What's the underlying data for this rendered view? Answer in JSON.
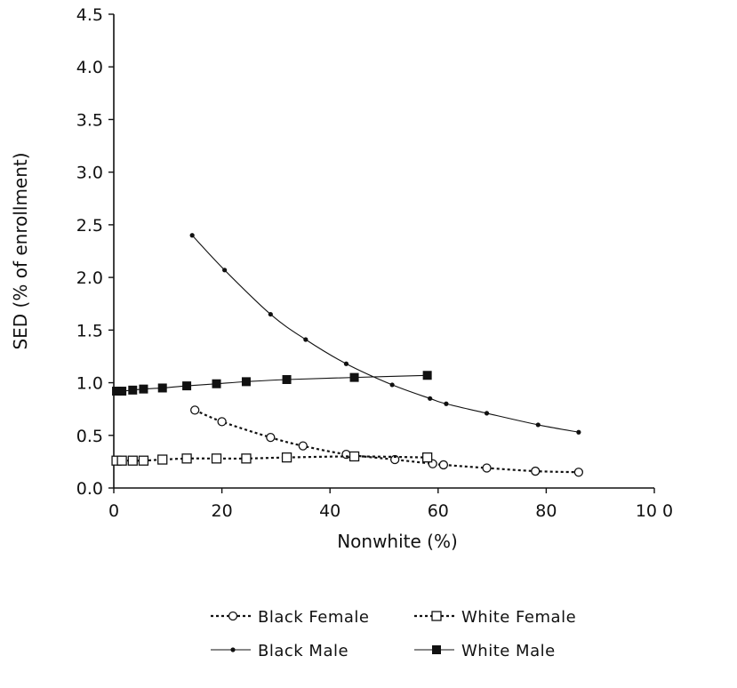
{
  "chart_data": {
    "type": "line",
    "title": "",
    "xlabel": "Nonwhite (%)",
    "ylabel": "SED (% of enrollment)",
    "xlim": [
      0,
      100
    ],
    "ylim": [
      0,
      4.5
    ],
    "xticks": [
      0,
      20,
      40,
      60,
      80,
      100
    ],
    "xtick_labels": [
      "0",
      "20",
      "40",
      "60",
      "80",
      "10 0"
    ],
    "yticks": [
      0,
      0.5,
      1.0,
      1.5,
      2.0,
      2.5,
      3.0,
      3.5,
      4.0,
      4.5
    ],
    "ytick_labels": [
      "0.0",
      "0.5",
      "1.0",
      "1.5",
      "2.0",
      "2.5",
      "3.0",
      "3.5",
      "4.0",
      "4.5"
    ],
    "grid": false,
    "legend_position": "bottom",
    "series": [
      {
        "name": "Black Female",
        "line_style": "dotted",
        "marker": "open-circle",
        "x": [
          15,
          20,
          29,
          35,
          43,
          52,
          59,
          61,
          69,
          78,
          86
        ],
        "y": [
          0.74,
          0.63,
          0.48,
          0.4,
          0.32,
          0.27,
          0.23,
          0.22,
          0.19,
          0.16,
          0.15
        ]
      },
      {
        "name": "White Female",
        "line_style": "dotted",
        "marker": "open-square",
        "x": [
          0.5,
          1.5,
          3.5,
          5.5,
          9,
          13.5,
          19,
          24.5,
          32,
          44.5,
          58
        ],
        "y": [
          0.26,
          0.26,
          0.26,
          0.26,
          0.27,
          0.28,
          0.28,
          0.28,
          0.29,
          0.3,
          0.29
        ]
      },
      {
        "name": "Black Male",
        "line_style": "solid",
        "marker": "small-dot",
        "x": [
          14.5,
          20.5,
          29,
          35.5,
          43,
          51.5,
          58.5,
          61.5,
          69,
          78.5,
          86
        ],
        "y": [
          2.4,
          2.07,
          1.65,
          1.41,
          1.18,
          0.98,
          0.85,
          0.8,
          0.71,
          0.6,
          0.53
        ]
      },
      {
        "name": "White Male",
        "line_style": "solid",
        "marker": "filled-square",
        "x": [
          0.5,
          1.5,
          3.5,
          5.5,
          9,
          13.5,
          19,
          24.5,
          32,
          44.5,
          58
        ],
        "y": [
          0.92,
          0.92,
          0.93,
          0.94,
          0.95,
          0.97,
          0.99,
          1.01,
          1.03,
          1.05,
          1.07
        ]
      }
    ]
  }
}
